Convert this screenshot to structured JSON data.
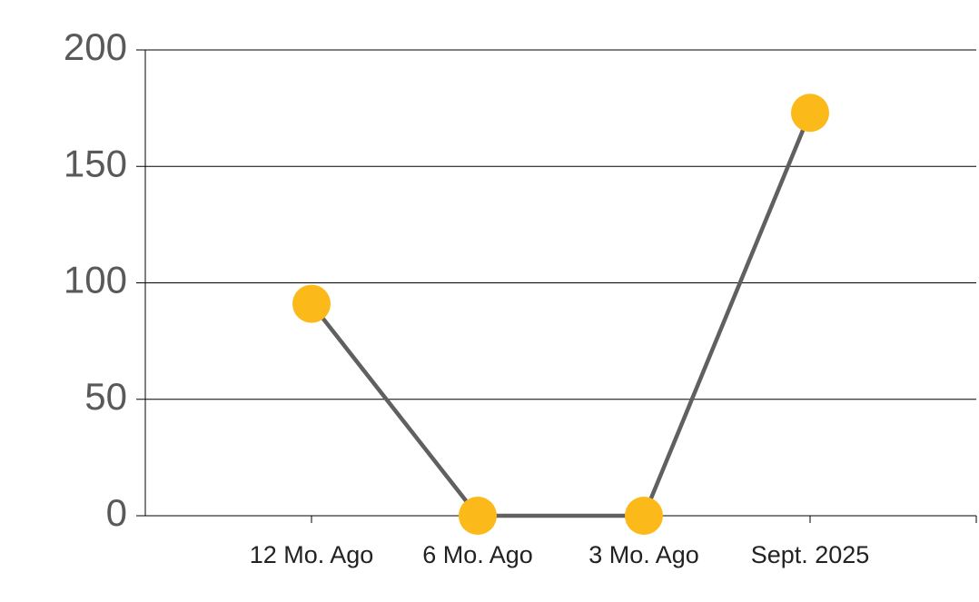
{
  "chart_data": {
    "type": "line",
    "categories": [
      "12 Mo. Ago",
      "6 Mo. Ago",
      "3 Mo. Ago",
      "Sept. 2025"
    ],
    "values": [
      91,
      0,
      0,
      173
    ],
    "color": "#606060",
    "marker_color": "#fbb91a",
    "ylim": [
      0,
      200
    ],
    "yticks": [
      0,
      50,
      100,
      150,
      200
    ],
    "grid": true
  }
}
